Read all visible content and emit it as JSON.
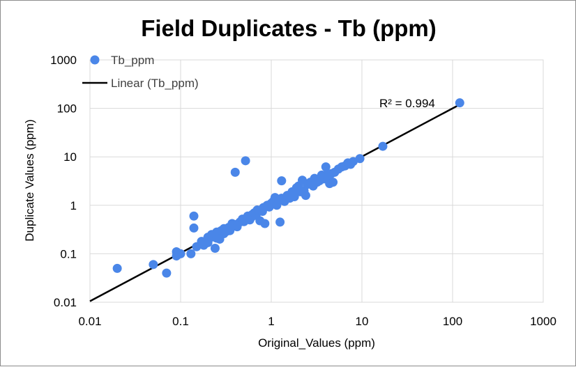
{
  "chart_data": {
    "type": "scatter",
    "title": "Field Duplicates  - Tb (ppm)",
    "xlabel": "Original_Values (ppm)",
    "ylabel": "Duplicate Values (ppm)",
    "xscale": "log",
    "yscale": "log",
    "xlim": [
      0.01,
      1000
    ],
    "ylim": [
      0.01,
      1000
    ],
    "x_ticks": [
      "0.01",
      "0.1",
      "1",
      "10",
      "100",
      "1000"
    ],
    "y_ticks": [
      "0.01",
      "0.1",
      "1",
      "10",
      "100",
      "1000"
    ],
    "grid": true,
    "legend": {
      "placement": "top-left",
      "entries": [
        "Tb_ppm",
        "Linear (Tb_ppm)"
      ]
    },
    "colors": {
      "marker": "#4a86e8",
      "trendline": "#000000"
    },
    "annotation": "R² = 0.994",
    "trendline": {
      "type": "linear",
      "x": [
        0.01,
        120
      ],
      "y": [
        0.0105,
        120
      ]
    },
    "series": [
      {
        "name": "Tb_ppm",
        "x": [
          0.02,
          0.05,
          0.07,
          0.09,
          0.09,
          0.1,
          0.13,
          0.14,
          0.14,
          0.15,
          0.17,
          0.18,
          0.2,
          0.2,
          0.22,
          0.22,
          0.24,
          0.25,
          0.25,
          0.27,
          0.28,
          0.3,
          0.3,
          0.32,
          0.34,
          0.35,
          0.37,
          0.4,
          0.4,
          0.42,
          0.45,
          0.48,
          0.5,
          0.52,
          0.55,
          0.58,
          0.6,
          0.62,
          0.65,
          0.68,
          0.7,
          0.75,
          0.78,
          0.8,
          0.82,
          0.85,
          0.9,
          0.95,
          1.0,
          1.05,
          1.1,
          1.15,
          1.2,
          1.25,
          1.3,
          1.3,
          1.4,
          1.5,
          1.6,
          1.7,
          1.8,
          1.9,
          2.0,
          2.1,
          2.2,
          2.3,
          2.4,
          2.5,
          2.7,
          2.9,
          3.0,
          3.2,
          3.4,
          3.6,
          3.8,
          4.0,
          4.0,
          4.2,
          4.4,
          4.6,
          4.8,
          5.0,
          5.5,
          6.0,
          6.5,
          7.0,
          7.5,
          8.0,
          9.5,
          17,
          120
        ],
        "y": [
          0.05,
          0.06,
          0.04,
          0.11,
          0.09,
          0.1,
          0.1,
          0.6,
          0.34,
          0.14,
          0.18,
          0.15,
          0.22,
          0.17,
          0.22,
          0.25,
          0.13,
          0.21,
          0.28,
          0.2,
          0.3,
          0.26,
          0.33,
          0.29,
          0.35,
          0.3,
          0.42,
          0.4,
          4.8,
          0.36,
          0.45,
          0.52,
          0.46,
          8.3,
          0.6,
          0.5,
          0.56,
          0.65,
          0.7,
          0.62,
          0.8,
          0.48,
          0.8,
          0.75,
          0.9,
          0.42,
          1.0,
          0.92,
          1.1,
          1.2,
          1.45,
          1.0,
          1.3,
          0.45,
          3.2,
          1.4,
          1.2,
          1.6,
          1.4,
          1.9,
          1.5,
          2.3,
          2.5,
          1.9,
          3.3,
          2.0,
          1.6,
          2.7,
          3.0,
          2.5,
          3.6,
          3.0,
          3.2,
          4.2,
          3.5,
          6.2,
          4.2,
          3.8,
          2.8,
          4.5,
          3.0,
          4.8,
          5.6,
          6.2,
          6.5,
          7.5,
          7.0,
          8.0,
          9.2,
          16.5,
          130
        ]
      }
    ]
  }
}
